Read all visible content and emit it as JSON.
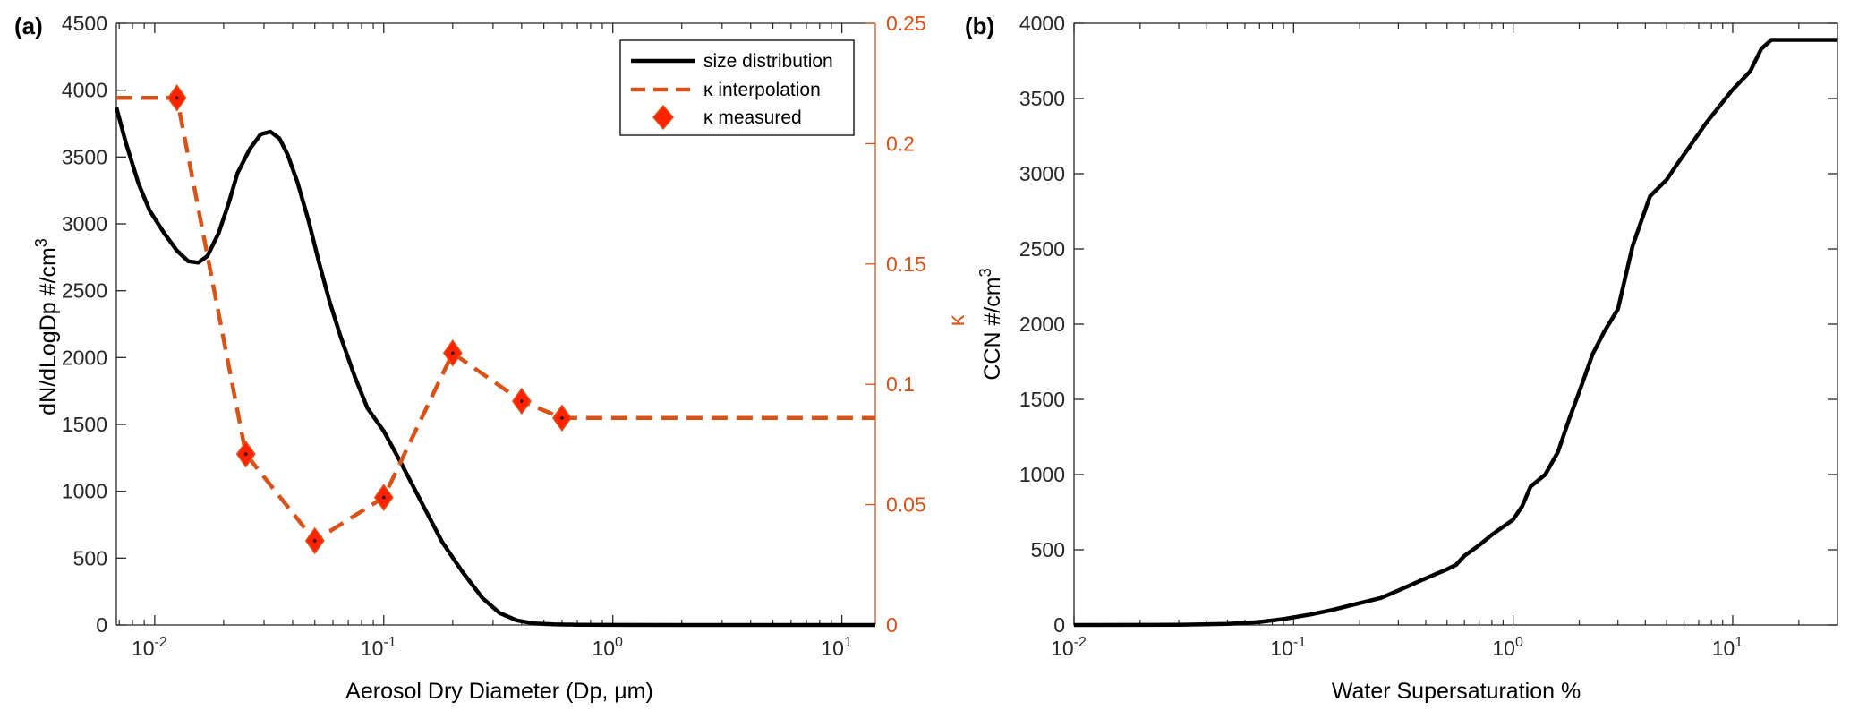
{
  "panel_labels": [
    "(a)",
    "(b)"
  ],
  "colors": {
    "size_distribution": "#000000",
    "kappa": "#d95319",
    "kappa_marker_fill": "#ff2200"
  },
  "chart_data": [
    {
      "type": "line",
      "panel": "(a)",
      "xlabel": "Aerosol Dry Diameter (Dp, μm)",
      "ylabel_left": "dN/dLogDp #/cm",
      "ylabel_left_sup": "3",
      "ylabel_right": "κ",
      "x_scale": "log",
      "xlim": [
        0.0068,
        14
      ],
      "ylim_left": [
        0,
        4500
      ],
      "ylim_right": [
        0,
        0.25
      ],
      "x_tick_labels": [
        {
          "base": "10",
          "exp": "-2",
          "value": 0.01
        },
        {
          "base": "10",
          "exp": "-1",
          "value": 0.1
        },
        {
          "base": "10",
          "exp": "0",
          "value": 1
        },
        {
          "base": "10",
          "exp": "1",
          "value": 10
        }
      ],
      "y_left_ticks": [
        0,
        500,
        1000,
        1500,
        2000,
        2500,
        3000,
        3500,
        4000,
        4500
      ],
      "y_right_ticks": [
        0,
        0.05,
        0.1,
        0.15,
        0.2,
        0.25
      ],
      "grid": false,
      "legend_position": "top-right",
      "legend": [
        "size distribution",
        "κ interpolation",
        "κ measured"
      ],
      "series": [
        {
          "name": "size distribution",
          "axis": "left",
          "style": "solid",
          "x": [
            0.0068,
            0.0075,
            0.0085,
            0.0095,
            0.011,
            0.0125,
            0.014,
            0.0155,
            0.017,
            0.019,
            0.021,
            0.023,
            0.026,
            0.029,
            0.032,
            0.035,
            0.038,
            0.042,
            0.047,
            0.052,
            0.058,
            0.065,
            0.075,
            0.085,
            0.1,
            0.12,
            0.15,
            0.18,
            0.22,
            0.27,
            0.32,
            0.38,
            0.45,
            0.55,
            0.7,
            1,
            2,
            5,
            14
          ],
          "y": [
            3870,
            3600,
            3300,
            3100,
            2930,
            2800,
            2720,
            2710,
            2760,
            2930,
            3150,
            3380,
            3560,
            3670,
            3690,
            3640,
            3520,
            3310,
            3020,
            2720,
            2420,
            2150,
            1850,
            1620,
            1450,
            1200,
            880,
            620,
            400,
            200,
            90,
            35,
            12,
            5,
            2,
            1,
            0,
            0,
            0
          ]
        },
        {
          "name": "κ interpolation",
          "axis": "right",
          "style": "dashed",
          "x": [
            0.0068,
            0.0125,
            0.025,
            0.05,
            0.1,
            0.2,
            0.4,
            0.6,
            14
          ],
          "y": [
            0.219,
            0.219,
            0.071,
            0.035,
            0.053,
            0.113,
            0.093,
            0.086,
            0.086
          ]
        },
        {
          "name": "κ measured",
          "axis": "right",
          "style": "markers",
          "x": [
            0.0125,
            0.025,
            0.05,
            0.1,
            0.2,
            0.4,
            0.6
          ],
          "y": [
            0.219,
            0.071,
            0.035,
            0.053,
            0.113,
            0.093,
            0.086
          ]
        }
      ]
    },
    {
      "type": "line",
      "panel": "(b)",
      "xlabel": "Water Supersaturation %",
      "ylabel": "CCN #/cm",
      "ylabel_sup": "3",
      "x_scale": "log",
      "xlim": [
        0.01,
        30
      ],
      "ylim": [
        0,
        4000
      ],
      "x_tick_labels": [
        {
          "base": "10",
          "exp": "-2",
          "value": 0.01
        },
        {
          "base": "10",
          "exp": "-1",
          "value": 0.1
        },
        {
          "base": "10",
          "exp": "0",
          "value": 1
        },
        {
          "base": "10",
          "exp": "1",
          "value": 10
        }
      ],
      "y_ticks": [
        0,
        500,
        1000,
        1500,
        2000,
        2500,
        3000,
        3500,
        4000
      ],
      "grid": false,
      "series": [
        {
          "x": [
            0.01,
            0.03,
            0.05,
            0.07,
            0.09,
            0.12,
            0.15,
            0.2,
            0.25,
            0.3,
            0.4,
            0.5,
            0.55,
            0.6,
            0.7,
            0.8,
            1.0,
            1.1,
            1.2,
            1.4,
            1.6,
            1.8,
            2.0,
            2.3,
            2.6,
            3.0,
            3.5,
            3.7,
            4.2,
            5.0,
            5.5,
            6.5,
            7.5,
            8.5,
            10,
            12,
            13.5,
            15,
            30
          ],
          "y": [
            0,
            2,
            8,
            20,
            40,
            70,
            100,
            145,
            180,
            230,
            310,
            370,
            400,
            460,
            530,
            600,
            700,
            790,
            920,
            1000,
            1150,
            1370,
            1550,
            1800,
            1950,
            2100,
            2520,
            2620,
            2850,
            2960,
            3050,
            3200,
            3330,
            3430,
            3560,
            3680,
            3830,
            3890,
            3890
          ]
        }
      ]
    }
  ]
}
